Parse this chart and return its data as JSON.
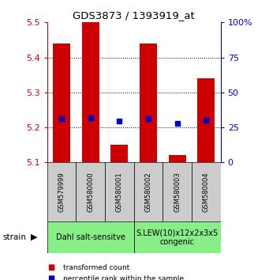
{
  "title": "GDS3873 / 1393919_at",
  "samples": [
    "GSM579999",
    "GSM580000",
    "GSM580001",
    "GSM580002",
    "GSM580003",
    "GSM580004"
  ],
  "bar_bottoms": [
    5.1,
    5.1,
    5.1,
    5.1,
    5.1,
    5.1
  ],
  "bar_tops": [
    5.44,
    5.5,
    5.15,
    5.44,
    5.12,
    5.34
  ],
  "blue_values": [
    5.225,
    5.227,
    5.218,
    5.225,
    5.212,
    5.22
  ],
  "ylim": [
    5.1,
    5.5
  ],
  "yticks_left": [
    5.1,
    5.2,
    5.3,
    5.4,
    5.5
  ],
  "yticks_right": [
    0,
    25,
    50,
    75,
    100
  ],
  "yticks_right_pos": [
    5.1,
    5.2,
    5.3,
    5.4,
    5.5
  ],
  "bar_color": "#cc0000",
  "blue_color": "#0000cc",
  "group1_label": "Dahl salt-sensitve",
  "group2_label": "S.LEW(10)x12x2x3x5\ncongenic",
  "group_bg_color": "#88ee88",
  "sample_bg_color": "#cccccc",
  "legend_red_label": "transformed count",
  "legend_blue_label": "percentile rank within the sample",
  "strain_label": "strain",
  "bar_width": 0.6,
  "fig_width": 3.41,
  "fig_height": 3.54
}
